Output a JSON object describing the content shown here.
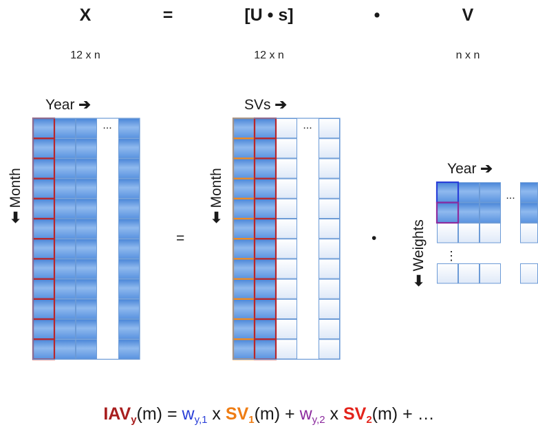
{
  "header": {
    "x": "X",
    "eq": "=",
    "us": "[U • s]",
    "dot": "•",
    "v": "V",
    "x_dim": "12 x n",
    "us_dim": "12 x n",
    "v_dim": "n x n"
  },
  "matrix_x": {
    "col_label": "Year",
    "row_label": "Month",
    "ellipsis": "..."
  },
  "matrix_u": {
    "col_label": "SVs",
    "row_label": "Month",
    "ellipsis": "..."
  },
  "matrix_v": {
    "col_label": "Year",
    "row_label": "Weights",
    "ellipsis_h": "...",
    "ellipsis_v": "⋮"
  },
  "ops": {
    "equals": "=",
    "dot": "•"
  },
  "arrow_right": "➔",
  "arrow_down": "⬇",
  "formula": {
    "iav": "IAV",
    "iav_sub": "y",
    "arg1": "(m)",
    "eq": " = ",
    "w1": "w",
    "w1_sub": "y,1",
    "times": " x ",
    "sv1": "SV",
    "sv1_sub": "1",
    "arg2": "(m)",
    "plus": " + ",
    "w2": "w",
    "w2_sub": "y,2",
    "sv2": "SV",
    "sv2_sub": "2",
    "arg3": "(m)",
    "tail": " + …"
  },
  "colors": {
    "cell_dark": "#6fa3e6",
    "cell_light": "#eef3fb",
    "grid_line": "#6b9ad6",
    "highlight_red": "#b8262a",
    "highlight_orange": "#f28a1e",
    "highlight_blue": "#2a3fd8",
    "highlight_purple": "#8c2b9e"
  }
}
